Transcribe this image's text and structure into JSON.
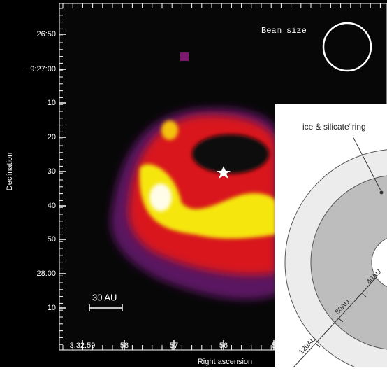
{
  "figure": {
    "y_ticks": [
      "26:50",
      "−9:27:00",
      "10",
      "20",
      "30",
      "40",
      "50",
      "28:00",
      "10"
    ],
    "x_ticks": [
      "3:32:59",
      "58",
      "57",
      "56",
      "5"
    ],
    "y_label": "Declination",
    "x_label": "Right ascension",
    "beam_label": "Beam size",
    "scale_label": "30 AU"
  },
  "inset": {
    "title": "ice & silicate“ring",
    "labels": [
      "40AU",
      "80AU",
      "120AU"
    ]
  }
}
